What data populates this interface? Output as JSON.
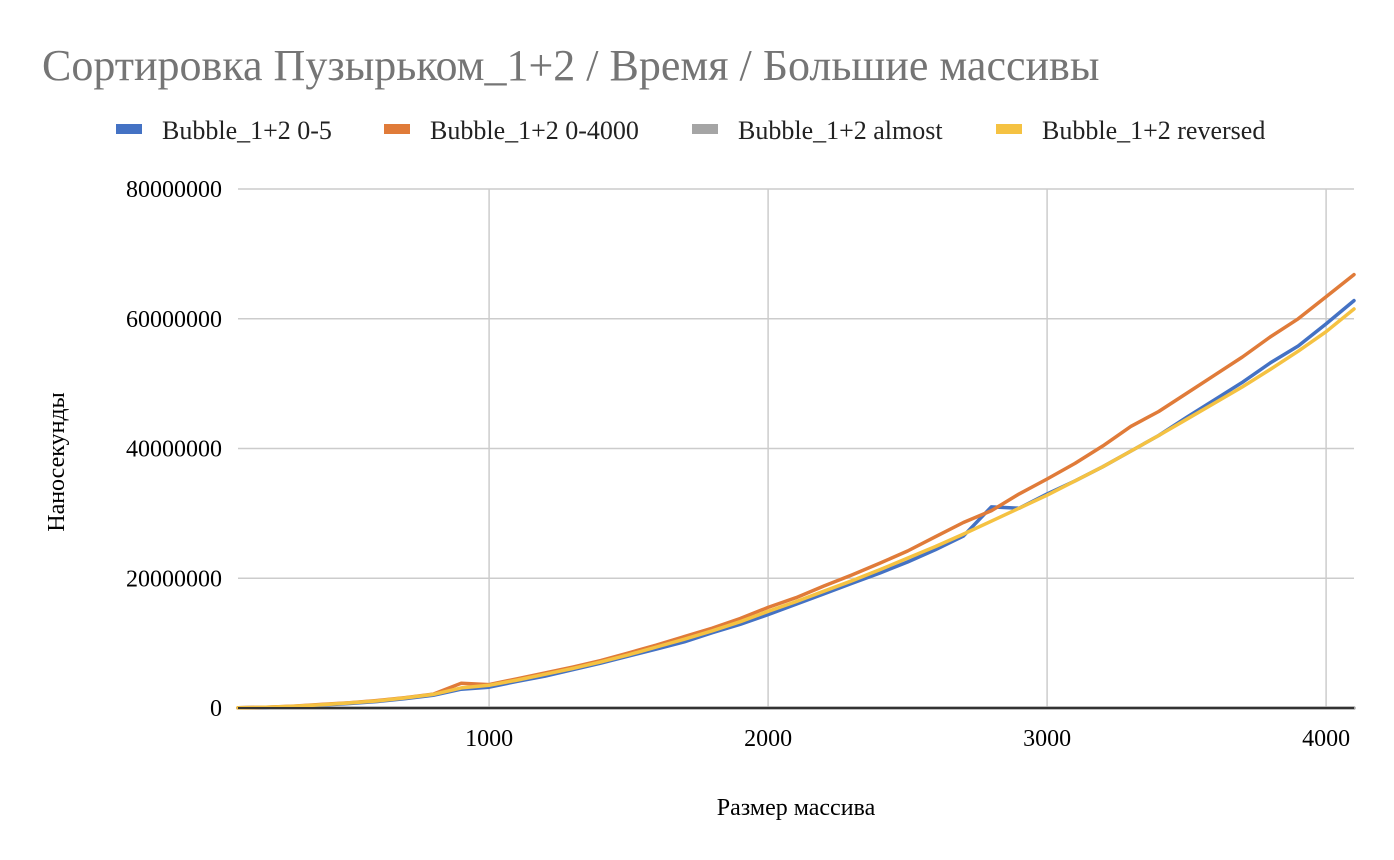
{
  "chart_data": {
    "type": "line",
    "title": "Сортировка Пузырьком_1+2 / Время / Большие массивы",
    "xlabel": "Размер массива",
    "ylabel": "Наносекунды",
    "xlim": [
      100,
      4100
    ],
    "ylim": [
      0,
      80000000
    ],
    "x_ticks": [
      1000,
      2000,
      3000,
      4000
    ],
    "y_ticks": [
      0,
      20000000,
      40000000,
      60000000,
      80000000
    ],
    "x_tick_labels": [
      "1000",
      "2000",
      "3000",
      "4000"
    ],
    "y_tick_labels": [
      "0",
      "20000000",
      "40000000",
      "60000000",
      "80000000"
    ],
    "grid": true,
    "legend_position": "top",
    "x": [
      100,
      200,
      300,
      400,
      500,
      600,
      700,
      800,
      900,
      1000,
      1100,
      1200,
      1300,
      1400,
      1500,
      1600,
      1700,
      1800,
      1900,
      2000,
      2100,
      2200,
      2300,
      2400,
      2500,
      2600,
      2700,
      2800,
      2900,
      3000,
      3100,
      3200,
      3300,
      3400,
      3500,
      3600,
      3700,
      3800,
      3900,
      4000,
      4100
    ],
    "series": [
      {
        "name": "Bubble_1+2 0-5",
        "color": "#4472c4",
        "values": [
          30000,
          100000,
          250000,
          450000,
          700000,
          1000000,
          1450000,
          1950000,
          2900000,
          3200000,
          4100000,
          4900000,
          5900000,
          6900000,
          8000000,
          9100000,
          10200000,
          11600000,
          12900000,
          14400000,
          16000000,
          17600000,
          19200000,
          20800000,
          22500000,
          24400000,
          26500000,
          31000000,
          30800000,
          33000000,
          35000000,
          37200000,
          39600000,
          42000000,
          44800000,
          47500000,
          50200000,
          53200000,
          55800000,
          59200000,
          62800000
        ]
      },
      {
        "name": "Bubble_1+2 0-4000",
        "color": "#e07b39",
        "values": [
          30000,
          120000,
          300000,
          550000,
          800000,
          1150000,
          1600000,
          2150000,
          3800000,
          3600000,
          4500000,
          5400000,
          6300000,
          7300000,
          8500000,
          9700000,
          11000000,
          12300000,
          13800000,
          15500000,
          17000000,
          18800000,
          20500000,
          22300000,
          24200000,
          26400000,
          28600000,
          30400000,
          33000000,
          35300000,
          37700000,
          40400000,
          43400000,
          45700000,
          48500000,
          51300000,
          54100000,
          57200000,
          60000000,
          63400000,
          66800000
        ]
      },
      {
        "name": "Bubble_1+2 almost",
        "color": "#a5a5a5",
        "values": [
          0,
          0,
          0,
          0,
          0,
          0,
          0,
          0,
          0,
          0,
          0,
          0,
          0,
          0,
          0,
          0,
          0,
          0,
          0,
          0,
          0,
          0,
          0,
          0,
          0,
          0,
          0,
          0,
          0,
          0,
          0,
          0,
          0,
          0,
          0,
          0,
          0,
          0,
          0,
          0,
          0
        ]
      },
      {
        "name": "Bubble_1+2 reversed",
        "color": "#f5c242",
        "values": [
          30000,
          110000,
          280000,
          500000,
          780000,
          1100000,
          1550000,
          2100000,
          3100000,
          3500000,
          4300000,
          5200000,
          6100000,
          7100000,
          8200000,
          9400000,
          10600000,
          11900000,
          13300000,
          14900000,
          16400000,
          18000000,
          19600000,
          21300000,
          23100000,
          24900000,
          26800000,
          28800000,
          30800000,
          32800000,
          35000000,
          37200000,
          39600000,
          42000000,
          44500000,
          47000000,
          49500000,
          52200000,
          55000000,
          58000000,
          61500000
        ]
      }
    ]
  }
}
